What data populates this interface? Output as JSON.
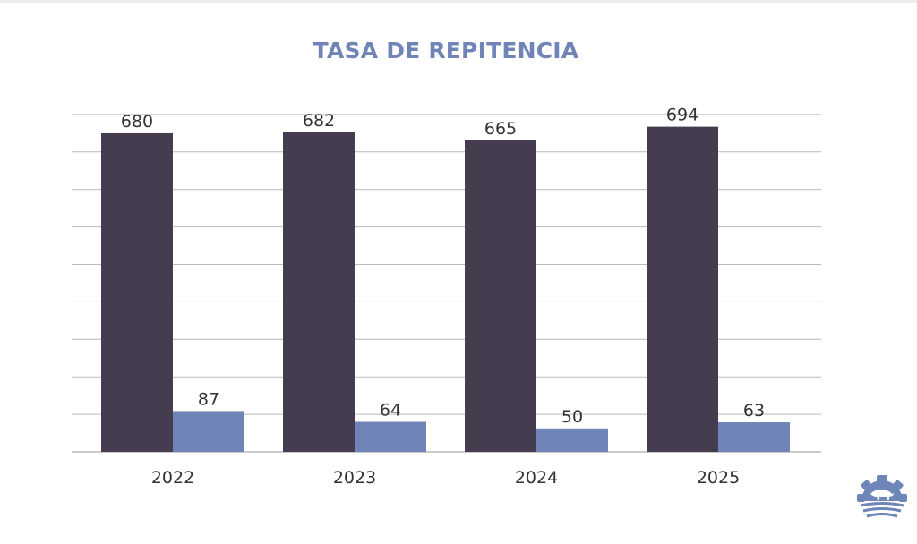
{
  "colors": {
    "title": "#7084b8",
    "series_dark": "#463c4f",
    "series_light": "#7084b8",
    "grid": "#b9b9b9",
    "text": "#333333"
  },
  "logo": {
    "icon": "gear-with-horse-and-field-logo"
  },
  "chart_data": {
    "type": "bar",
    "title": "TASA DE REPITENCIA",
    "categories": [
      "2022",
      "2023",
      "2024",
      "2025"
    ],
    "series": [
      {
        "name": "",
        "values": [
          680,
          682,
          665,
          694
        ]
      },
      {
        "name": "",
        "values": [
          87,
          64,
          50,
          63
        ]
      }
    ],
    "xlabel": "",
    "ylabel": "",
    "ylim": [
      0,
      720
    ],
    "grid": true,
    "legend": "none"
  }
}
